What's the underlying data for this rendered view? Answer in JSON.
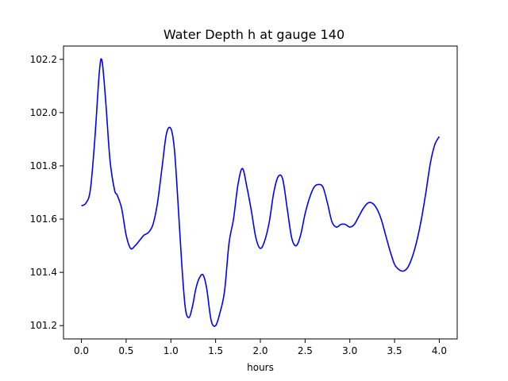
{
  "chart_data": {
    "type": "line",
    "title": "Water Depth h at gauge 140",
    "xlabel": "hours",
    "ylabel": "",
    "xlim": [
      -0.2,
      4.2
    ],
    "ylim": [
      101.15,
      102.25
    ],
    "xticks": [
      0.0,
      0.5,
      1.0,
      1.5,
      2.0,
      2.5,
      3.0,
      3.5,
      4.0
    ],
    "xtick_labels": [
      "0.0",
      "0.5",
      "1.0",
      "1.5",
      "2.0",
      "2.5",
      "3.0",
      "3.5",
      "4.0"
    ],
    "yticks": [
      101.2,
      101.4,
      101.6,
      101.8,
      102.0,
      102.2
    ],
    "ytick_labels": [
      "101.2",
      "101.4",
      "101.6",
      "101.8",
      "102.0",
      "102.2"
    ],
    "grid": false,
    "line_color": "#0000ff",
    "series": [
      {
        "x": [
          0.0,
          0.05,
          0.1,
          0.15,
          0.2,
          0.23,
          0.27,
          0.32,
          0.37,
          0.4,
          0.45,
          0.5,
          0.55,
          0.6,
          0.65,
          0.7,
          0.75,
          0.8,
          0.85,
          0.9,
          0.95,
          1.0,
          1.04,
          1.08,
          1.12,
          1.16,
          1.2,
          1.24,
          1.28,
          1.32,
          1.36,
          1.4,
          1.45,
          1.5,
          1.55,
          1.6,
          1.65,
          1.7,
          1.75,
          1.8,
          1.85,
          1.9,
          1.95,
          2.0,
          2.05,
          2.1,
          2.15,
          2.2,
          2.25,
          2.3,
          2.35,
          2.4,
          2.45,
          2.5,
          2.55,
          2.6,
          2.65,
          2.7,
          2.75,
          2.8,
          2.85,
          2.9,
          2.95,
          3.0,
          3.05,
          3.1,
          3.15,
          3.2,
          3.25,
          3.3,
          3.35,
          3.4,
          3.45,
          3.5,
          3.55,
          3.6,
          3.65,
          3.7,
          3.75,
          3.8,
          3.85,
          3.9,
          3.95,
          4.0
        ],
        "y": [
          101.65,
          101.66,
          101.71,
          101.9,
          102.15,
          102.195,
          102.05,
          101.82,
          101.71,
          101.69,
          101.64,
          101.54,
          101.49,
          101.5,
          101.52,
          101.54,
          101.55,
          101.58,
          101.66,
          101.79,
          101.92,
          101.94,
          101.86,
          101.66,
          101.44,
          101.27,
          101.23,
          101.27,
          101.34,
          101.38,
          101.39,
          101.34,
          101.22,
          101.2,
          101.25,
          101.33,
          101.51,
          101.6,
          101.73,
          101.79,
          101.72,
          101.63,
          101.53,
          101.49,
          101.52,
          101.59,
          101.7,
          101.76,
          101.75,
          101.64,
          101.53,
          101.5,
          101.54,
          101.62,
          101.68,
          101.72,
          101.73,
          101.72,
          101.66,
          101.59,
          101.57,
          101.58,
          101.58,
          101.57,
          101.58,
          101.61,
          101.64,
          101.66,
          101.66,
          101.64,
          101.6,
          101.54,
          101.48,
          101.43,
          101.41,
          101.405,
          101.42,
          101.46,
          101.52,
          101.6,
          101.7,
          101.81,
          101.88,
          101.91
        ]
      }
    ]
  }
}
